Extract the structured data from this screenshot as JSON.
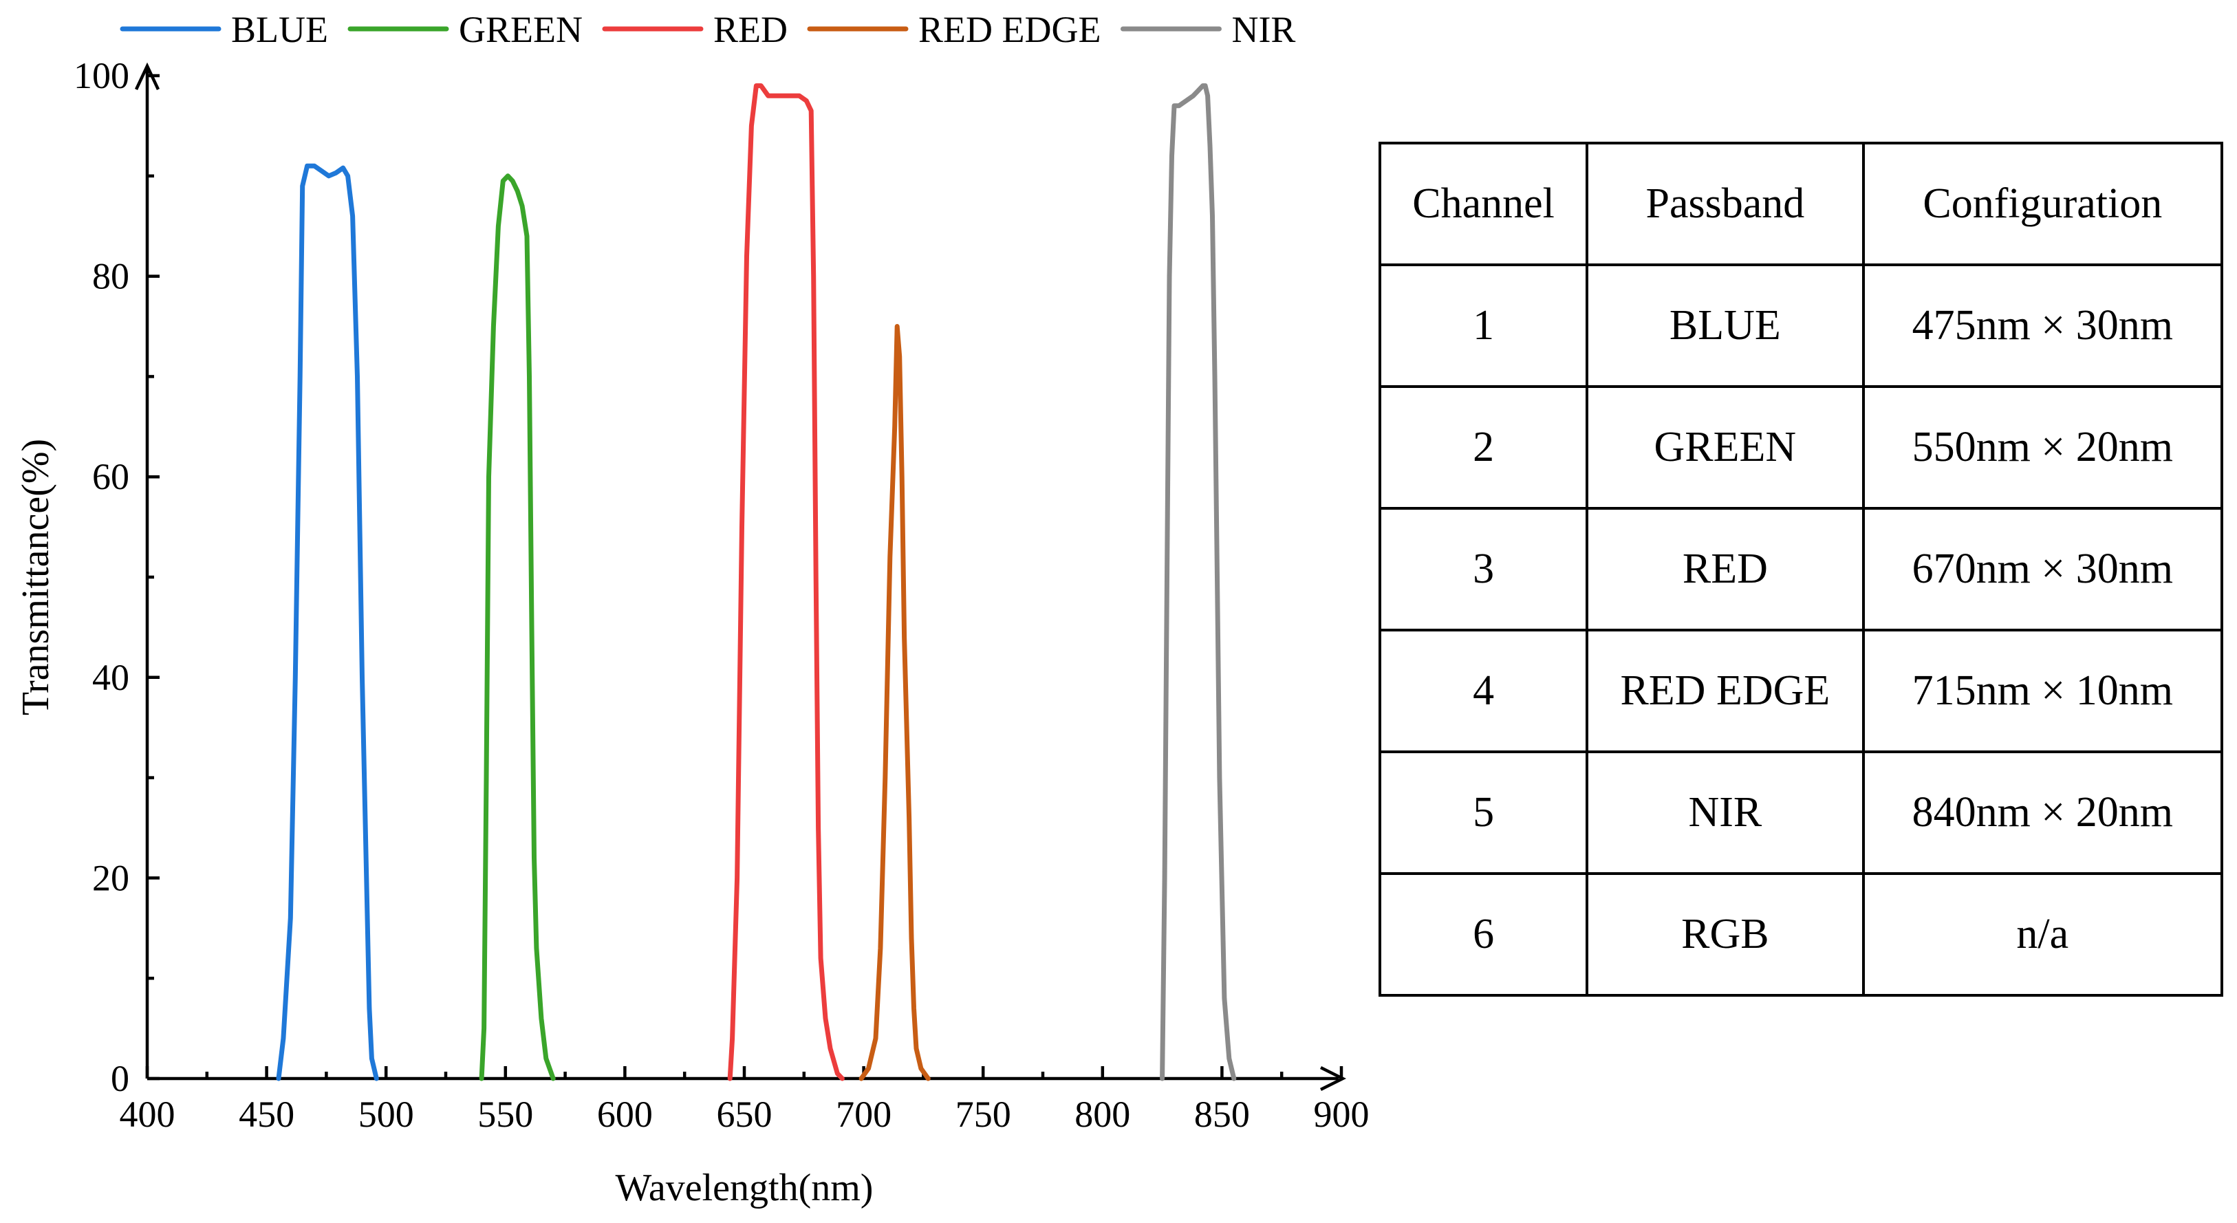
{
  "chart_data": {
    "type": "line",
    "title": "",
    "xlabel": "Wavelength(nm)",
    "ylabel": "Transmittance(%)",
    "xlim": [
      400,
      900
    ],
    "ylim": [
      0,
      100
    ],
    "x_ticks": [
      400,
      450,
      500,
      550,
      600,
      650,
      700,
      750,
      800,
      850,
      900
    ],
    "y_ticks": [
      0,
      20,
      40,
      60,
      80,
      100
    ],
    "legend_position": "top",
    "grid": false,
    "series": [
      {
        "name": "BLUE",
        "color": "#1f78d8",
        "points": [
          [
            455,
            0
          ],
          [
            457,
            4
          ],
          [
            460,
            16
          ],
          [
            462,
            40
          ],
          [
            464,
            70
          ],
          [
            465,
            89
          ],
          [
            467,
            91
          ],
          [
            470,
            91
          ],
          [
            473,
            90.5
          ],
          [
            476,
            90
          ],
          [
            479,
            90.3
          ],
          [
            482,
            90.8
          ],
          [
            484,
            90
          ],
          [
            486,
            86
          ],
          [
            488,
            70
          ],
          [
            490,
            40
          ],
          [
            492,
            18
          ],
          [
            493,
            7
          ],
          [
            494,
            2
          ],
          [
            496,
            0
          ]
        ]
      },
      {
        "name": "GREEN",
        "color": "#3aa52a",
        "points": [
          [
            540,
            0
          ],
          [
            541,
            5
          ],
          [
            542,
            30
          ],
          [
            543,
            60
          ],
          [
            545,
            75
          ],
          [
            547,
            85
          ],
          [
            549,
            89.5
          ],
          [
            551,
            90
          ],
          [
            553,
            89.5
          ],
          [
            555,
            88.5
          ],
          [
            557,
            87
          ],
          [
            559,
            84
          ],
          [
            560,
            70
          ],
          [
            561,
            45
          ],
          [
            562,
            22
          ],
          [
            563,
            13
          ],
          [
            565,
            6
          ],
          [
            567,
            2
          ],
          [
            570,
            0
          ]
        ]
      },
      {
        "name": "RED",
        "color": "#ec3d3d",
        "points": [
          [
            644,
            0
          ],
          [
            645,
            4
          ],
          [
            647,
            20
          ],
          [
            649,
            55
          ],
          [
            651,
            82
          ],
          [
            653,
            95
          ],
          [
            655,
            99
          ],
          [
            657,
            99
          ],
          [
            660,
            98
          ],
          [
            665,
            98
          ],
          [
            670,
            98
          ],
          [
            673,
            98
          ],
          [
            676,
            97.5
          ],
          [
            678,
            96.5
          ],
          [
            679,
            80
          ],
          [
            680,
            50
          ],
          [
            681,
            25
          ],
          [
            682,
            12
          ],
          [
            684,
            6
          ],
          [
            686,
            3
          ],
          [
            689,
            0.5
          ],
          [
            691,
            0
          ]
        ]
      },
      {
        "name": "RED EDGE",
        "color": "#c85d14",
        "points": [
          [
            699,
            0
          ],
          [
            702,
            1
          ],
          [
            705,
            4
          ],
          [
            707,
            13
          ],
          [
            709,
            30
          ],
          [
            711,
            52
          ],
          [
            713,
            65
          ],
          [
            714,
            75
          ],
          [
            715,
            72
          ],
          [
            716,
            60
          ],
          [
            717,
            44
          ],
          [
            719,
            26
          ],
          [
            720,
            14
          ],
          [
            721,
            7
          ],
          [
            722,
            3
          ],
          [
            724,
            1
          ],
          [
            727,
            0
          ]
        ]
      },
      {
        "name": "NIR",
        "color": "#8a8a8a",
        "points": [
          [
            825,
            0
          ],
          [
            826,
            20
          ],
          [
            827,
            50
          ],
          [
            828,
            80
          ],
          [
            829,
            92
          ],
          [
            830,
            97
          ],
          [
            832,
            97
          ],
          [
            835,
            97.5
          ],
          [
            838,
            98
          ],
          [
            840,
            98.5
          ],
          [
            842,
            99
          ],
          [
            843,
            99
          ],
          [
            844,
            98
          ],
          [
            845,
            93
          ],
          [
            846,
            86
          ],
          [
            847,
            70
          ],
          [
            848,
            50
          ],
          [
            849,
            30
          ],
          [
            851,
            8
          ],
          [
            853,
            2
          ],
          [
            855,
            0
          ]
        ]
      }
    ]
  },
  "table": {
    "headers": [
      "Channel",
      "Passband",
      "Configuration"
    ],
    "rows": [
      [
        "1",
        "BLUE",
        "475nm × 30nm"
      ],
      [
        "2",
        "GREEN",
        "550nm × 20nm"
      ],
      [
        "3",
        "RED",
        "670nm × 30nm"
      ],
      [
        "4",
        "RED EDGE",
        "715nm × 10nm"
      ],
      [
        "5",
        "NIR",
        "840nm × 20nm"
      ],
      [
        "6",
        "RGB",
        "n/a"
      ]
    ]
  }
}
